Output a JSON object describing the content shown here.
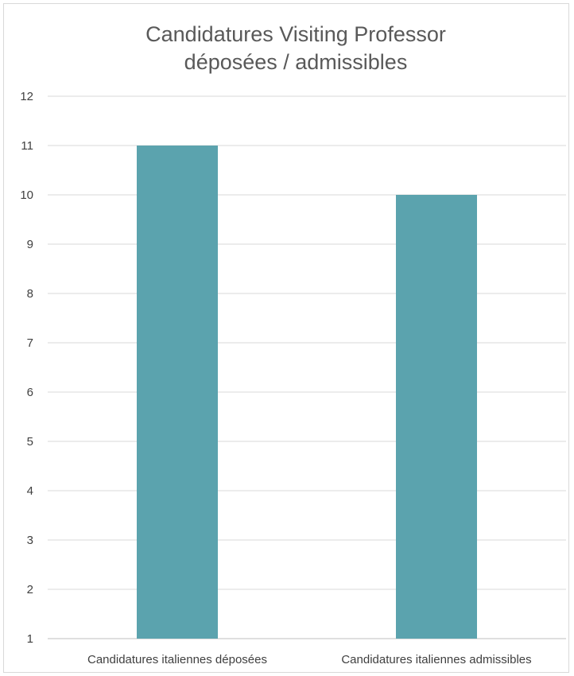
{
  "chart_data": {
    "type": "bar",
    "title": [
      "Candidatures Visiting Professor",
      "déposées / admissibles"
    ],
    "categories": [
      "Candidatures italiennes déposées",
      "Candidatures italiennes admissibles"
    ],
    "values": [
      11,
      10
    ],
    "xlabel": "",
    "ylabel": "",
    "ylim": [
      1,
      12
    ],
    "yticks": [
      1,
      2,
      3,
      4,
      5,
      6,
      7,
      8,
      9,
      10,
      11,
      12
    ],
    "grid": true,
    "legend": "none",
    "bar_color": "#5ba3ae"
  }
}
